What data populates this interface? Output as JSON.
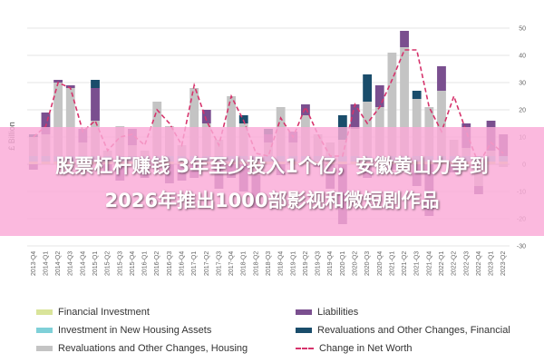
{
  "chart_data": {
    "type": "bar",
    "ylabel": "£ Billion",
    "ylim": [
      -30,
      50
    ],
    "yticks": [
      50,
      40,
      30,
      20,
      10,
      0,
      -10,
      -20,
      -30
    ],
    "grid": true,
    "legend_position": "bottom",
    "categories": [
      "2013-Q4",
      "2014-Q1",
      "2014-Q2",
      "2014-Q3",
      "2014-Q4",
      "2015-Q1",
      "2015-Q2",
      "2015-Q3",
      "2015-Q4",
      "2016-Q1",
      "2016-Q2",
      "2016-Q3",
      "2016-Q4",
      "2017-Q1",
      "2017-Q2",
      "2017-Q3",
      "2017-Q4",
      "2018-Q1",
      "2018-Q2",
      "2018-Q3",
      "2018-Q4",
      "2019-Q1",
      "2019-Q2",
      "2019-Q3",
      "2019-Q4",
      "2020-Q1",
      "2020-Q2",
      "2020-Q3",
      "2020-Q4",
      "2021-Q1",
      "2021-Q2",
      "2021-Q3",
      "2021-Q4",
      "2022-Q1",
      "2022-Q2",
      "2022-Q3",
      "2022-Q4",
      "2023-Q1",
      "2023-Q2"
    ],
    "x_tick_labels": [
      "2013-Q4",
      "2014-Q1",
      "2014-Q2",
      "2014-Q3",
      "2014-Q4",
      "2015-Q1",
      "2015-Q2",
      "2015-Q3",
      "2015-Q4",
      "2016-Q1",
      "2016-Q2",
      "2016-Q3",
      "2016-Q4",
      "2017-Q1",
      "2017-Q2",
      "2017-Q3",
      "2017-Q4",
      "2018-Q1",
      "2018-Q2",
      "2018-Q3",
      "2018-Q4",
      "2019-Q1",
      "2019-Q2",
      "2019-Q3",
      "2019-Q4",
      "2020-Q1",
      "2020-Q2",
      "2020-Q3",
      "2020-Q4",
      "2021-Q1",
      "2021-Q2",
      "2021-Q3",
      "2021-Q4",
      "2022-Q1",
      "2022-Q2",
      "2022-Q3",
      "2022-Q4",
      "2023-Q1",
      "2023-Q2"
    ],
    "series": [
      {
        "name": "Financial Investment",
        "kind": "bar",
        "color": "#d9e49a",
        "values": [
          1,
          1,
          1,
          1,
          1,
          1,
          1,
          1,
          1,
          1,
          1,
          1,
          1,
          1,
          1,
          1,
          1,
          1,
          1,
          1,
          1,
          1,
          1,
          1,
          1,
          1,
          1,
          1,
          1,
          1,
          1,
          1,
          1,
          1,
          1,
          1,
          1,
          1,
          1
        ]
      },
      {
        "name": "Investment in New Housing Assets",
        "kind": "bar",
        "color": "#7fd0d8",
        "values": [
          2,
          2,
          2,
          2,
          2,
          2,
          2,
          2,
          2,
          2,
          2,
          2,
          2,
          2,
          2,
          2,
          2,
          2,
          2,
          2,
          2,
          2,
          2,
          2,
          2,
          2,
          2,
          2,
          2,
          2,
          2,
          2,
          2,
          2,
          2,
          2,
          2,
          2,
          2
        ]
      },
      {
        "name": "Revaluations and Other Changes, Housing",
        "kind": "bar",
        "color": "#c4c4c4",
        "values": [
          7,
          8,
          27,
          25,
          5,
          13,
          2,
          11,
          4,
          2,
          20,
          11,
          4,
          25,
          12,
          6,
          22,
          12,
          -4,
          5,
          18,
          5,
          15,
          8,
          5,
          6,
          10,
          20,
          18,
          38,
          40,
          21,
          18,
          24,
          6,
          3,
          -8,
          2,
          -1
        ]
      },
      {
        "name": "Liabilities",
        "kind": "bar",
        "color": "#7a4f8f",
        "values": [
          -2,
          8,
          1,
          1,
          5,
          12,
          -3,
          -6,
          6,
          -5,
          -1,
          -7,
          -6,
          -5,
          5,
          -9,
          -5,
          -10,
          -12,
          3,
          -4,
          4,
          4,
          -1,
          -9,
          -22,
          9,
          -5,
          8,
          -2,
          6,
          -8,
          -19,
          9,
          -3,
          9,
          -3,
          11,
          8
        ]
      },
      {
        "name": "Revaluations and Other Changes, Financial",
        "kind": "bar",
        "color": "#1a4d6b",
        "values": [
          1,
          0,
          0,
          0,
          0,
          3,
          0,
          0,
          0,
          0,
          0,
          0,
          0,
          0,
          0,
          0,
          0,
          3,
          0,
          2,
          0,
          0,
          0,
          0,
          0,
          9,
          0,
          10,
          0,
          0,
          0,
          3,
          0,
          0,
          0,
          0,
          0,
          0,
          0
        ]
      },
      {
        "name": "Change in Net Worth",
        "kind": "line",
        "color": "#d6336c",
        "values": [
          10,
          14,
          30,
          28,
          12,
          16,
          5,
          10,
          11,
          7,
          20,
          15,
          7,
          29,
          16,
          7,
          25,
          16,
          4,
          3,
          17,
          10,
          21,
          11,
          3,
          3,
          22,
          15,
          21,
          31,
          42,
          42,
          21,
          12,
          25,
          12,
          0,
          8,
          4
        ]
      }
    ]
  },
  "banner": {
    "line1": "股票杠杆赚钱 3年至少投入1个亿，安徽黄山力争到",
    "line2": "2026年推出1000部影视和微短剧作品"
  }
}
